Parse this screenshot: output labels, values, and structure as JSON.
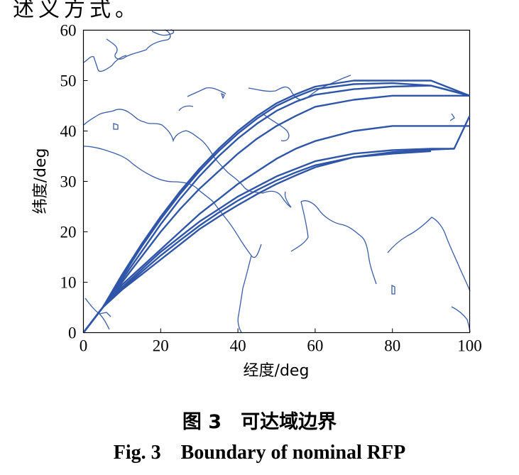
{
  "page": {
    "top_fragment": "述义方式。"
  },
  "chart_data": {
    "type": "line",
    "xlabel": "经度/deg",
    "ylabel": "纬度/deg",
    "xlim": [
      0,
      100
    ],
    "ylim": [
      0,
      60
    ],
    "xticks": [
      0,
      20,
      40,
      60,
      80,
      100
    ],
    "yticks": [
      0,
      10,
      20,
      30,
      40,
      50,
      60
    ],
    "grid": false,
    "line_color": "#2f55a8",
    "coastline_color": "#3a5ea8",
    "series": [
      {
        "x": [
          0,
          5,
          10,
          15,
          20,
          25,
          30,
          35,
          40,
          45,
          50,
          55,
          60,
          70,
          80,
          90,
          100
        ],
        "y": [
          0,
          5,
          11.5,
          17.5,
          23,
          28,
          32.5,
          36.5,
          40,
          43,
          45.5,
          47.3,
          48.8,
          50,
          50,
          50,
          47
        ]
      },
      {
        "x": [
          0,
          5,
          10,
          15,
          20,
          25,
          30,
          35,
          40,
          45,
          50,
          55,
          60,
          70,
          80,
          90,
          100
        ],
        "y": [
          0,
          5,
          11,
          17,
          22.5,
          27.5,
          32,
          36,
          39.5,
          42.5,
          45,
          46.8,
          48.3,
          49.3,
          49.5,
          49,
          47
        ]
      },
      {
        "x": [
          0,
          5,
          10,
          15,
          20,
          25,
          30,
          35,
          40,
          45,
          50,
          55,
          60,
          70,
          80,
          90,
          100
        ],
        "y": [
          0,
          5,
          10.5,
          16,
          21.5,
          26.5,
          31,
          35,
          38.5,
          41.5,
          44,
          45.8,
          47.2,
          48.3,
          48.8,
          49,
          47
        ]
      },
      {
        "x": [
          0,
          5,
          10,
          15,
          20,
          25,
          30,
          35,
          40,
          45,
          50,
          55,
          60,
          70,
          80,
          90,
          100
        ],
        "y": [
          0,
          5,
          10,
          15,
          20,
          24.5,
          28.5,
          32,
          35.5,
          38.5,
          41,
          43,
          44.8,
          46.2,
          47,
          47,
          47
        ]
      },
      {
        "x": [
          0,
          5,
          10,
          15,
          20,
          25,
          30,
          35,
          40,
          45,
          50,
          55,
          60,
          70,
          80,
          90,
          100
        ],
        "y": [
          0,
          5,
          9.5,
          13,
          16.5,
          20,
          23.5,
          26.5,
          29.5,
          32,
          34.5,
          36.5,
          38,
          40,
          41,
          41,
          41
        ]
      },
      {
        "x": [
          0,
          5,
          10,
          15,
          20,
          25,
          30,
          35,
          40,
          45,
          50,
          55,
          60,
          70,
          80,
          90,
          96,
          100
        ],
        "y": [
          0,
          5,
          9,
          12.5,
          16,
          19,
          22,
          24.5,
          27,
          29,
          31,
          32.5,
          34,
          35.5,
          36.2,
          36.5,
          36.5,
          43
        ]
      },
      {
        "x": [
          0,
          5,
          10,
          15,
          20,
          25,
          30,
          35,
          40,
          45,
          50,
          55,
          60,
          70,
          80,
          90,
          96
        ],
        "y": [
          0,
          5,
          8.7,
          12,
          15.3,
          18.3,
          21.2,
          23.8,
          26.2,
          28.3,
          30.2,
          31.8,
          33.2,
          34.8,
          35.8,
          36.3,
          36.5
        ]
      },
      {
        "x": [
          0,
          5,
          10,
          15,
          20,
          25,
          30,
          35,
          40,
          45,
          50,
          55,
          60,
          70,
          80,
          90
        ],
        "y": [
          0,
          5,
          8.5,
          11.5,
          14.5,
          17.5,
          20.5,
          23,
          25.3,
          27.5,
          29.5,
          31.2,
          32.8,
          34.8,
          35.5,
          36
        ]
      }
    ]
  },
  "caption": {
    "cn": "图 3　可达域边界",
    "en": "Fig. 3　Boundary of nominal RFP"
  }
}
